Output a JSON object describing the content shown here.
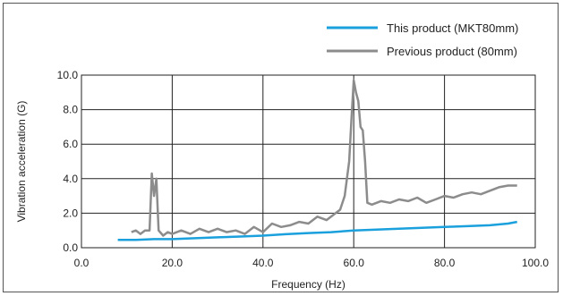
{
  "chart_data": {
    "type": "line",
    "title": "",
    "xlabel": "Frequency (Hz)",
    "ylabel": "Vibration acceleration (G)",
    "xlim": [
      0,
      100
    ],
    "ylim": [
      0,
      10
    ],
    "x_ticks": [
      "0.0",
      "20.0",
      "40.0",
      "60.0",
      "80.0",
      "100.0"
    ],
    "y_ticks": [
      "0.0",
      "2.0",
      "4.0",
      "6.0",
      "8.0",
      "10.0"
    ],
    "grid": true,
    "legend_position": "top-right",
    "series": [
      {
        "name": "This product (MKT80mm)",
        "color": "#1aa0dc",
        "points": [
          [
            8,
            0.45
          ],
          [
            12,
            0.45
          ],
          [
            16,
            0.5
          ],
          [
            20,
            0.5
          ],
          [
            25,
            0.55
          ],
          [
            30,
            0.6
          ],
          [
            35,
            0.65
          ],
          [
            40,
            0.7
          ],
          [
            45,
            0.78
          ],
          [
            50,
            0.85
          ],
          [
            55,
            0.9
          ],
          [
            60,
            1.0
          ],
          [
            65,
            1.05
          ],
          [
            70,
            1.1
          ],
          [
            75,
            1.15
          ],
          [
            80,
            1.2
          ],
          [
            85,
            1.25
          ],
          [
            90,
            1.3
          ],
          [
            94,
            1.4
          ],
          [
            96,
            1.5
          ]
        ]
      },
      {
        "name": "Previous product (80mm)",
        "color": "#8c8c8c",
        "points": [
          [
            11,
            0.9
          ],
          [
            12,
            1.0
          ],
          [
            13,
            0.8
          ],
          [
            14,
            1.0
          ],
          [
            15,
            1.0
          ],
          [
            15.5,
            4.3
          ],
          [
            16,
            3.0
          ],
          [
            16.5,
            4.0
          ],
          [
            17,
            1.0
          ],
          [
            18,
            0.7
          ],
          [
            19,
            0.9
          ],
          [
            20,
            0.8
          ],
          [
            22,
            1.0
          ],
          [
            24,
            0.8
          ],
          [
            26,
            1.1
          ],
          [
            28,
            0.9
          ],
          [
            30,
            1.1
          ],
          [
            32,
            0.9
          ],
          [
            34,
            1.0
          ],
          [
            36,
            0.8
          ],
          [
            38,
            1.2
          ],
          [
            40,
            0.9
          ],
          [
            42,
            1.4
          ],
          [
            44,
            1.2
          ],
          [
            46,
            1.3
          ],
          [
            48,
            1.5
          ],
          [
            50,
            1.4
          ],
          [
            52,
            1.8
          ],
          [
            54,
            1.6
          ],
          [
            56,
            2.0
          ],
          [
            57,
            2.2
          ],
          [
            58,
            3.0
          ],
          [
            59,
            5.0
          ],
          [
            59.5,
            7.5
          ],
          [
            60,
            9.7
          ],
          [
            60.5,
            9.0
          ],
          [
            61,
            8.5
          ],
          [
            61.5,
            7.0
          ],
          [
            62,
            6.8
          ],
          [
            62.5,
            5.0
          ],
          [
            63,
            2.6
          ],
          [
            64,
            2.5
          ],
          [
            66,
            2.7
          ],
          [
            68,
            2.6
          ],
          [
            70,
            2.8
          ],
          [
            72,
            2.7
          ],
          [
            74,
            2.9
          ],
          [
            76,
            2.6
          ],
          [
            78,
            2.8
          ],
          [
            80,
            3.0
          ],
          [
            82,
            2.9
          ],
          [
            84,
            3.1
          ],
          [
            86,
            3.2
          ],
          [
            88,
            3.1
          ],
          [
            90,
            3.3
          ],
          [
            92,
            3.5
          ],
          [
            94,
            3.6
          ],
          [
            96,
            3.6
          ]
        ]
      }
    ]
  }
}
